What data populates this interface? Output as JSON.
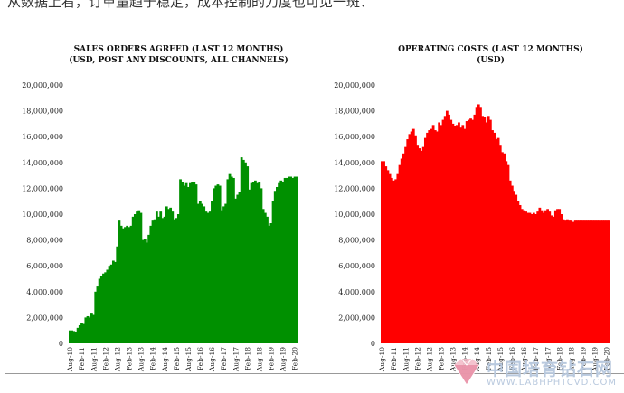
{
  "caption": "从数据上看，订单量趋于稳定，成本控制的力度也可见一斑：",
  "watermark": {
    "text": "中国培育钻石网",
    "url": "WWW.LABHPHTCVD.COM",
    "logo_icon": "diamond-logo-icon"
  },
  "chart_data": [
    {
      "type": "area",
      "title": "SALES ORDERS AGREED (LAST 12 MONTHS)",
      "subtitle": "(USD, POST ANY DISCOUNTS, ALL CHANNELS)",
      "color": "#009000",
      "ylim": [
        0,
        20000000
      ],
      "y_ticks": [
        "0",
        "2,000,000",
        "4,000,000",
        "6,000,000",
        "8,000,000",
        "10,000,000",
        "12,000,000",
        "14,000,000",
        "16,000,000",
        "18,000,000",
        "20,000,000"
      ],
      "x_ticks": [
        "Aug-10",
        "Feb-11",
        "Aug-11",
        "Feb-12",
        "Aug-12",
        "Feb-13",
        "Aug-13",
        "Feb-14",
        "Aug-14",
        "Feb-15",
        "Aug-15",
        "Feb-16",
        "Aug-16",
        "Feb-17",
        "Aug-17",
        "Feb-18",
        "Aug-18",
        "Feb-19",
        "Aug-19",
        "Feb-20"
      ],
      "grid": false,
      "legend": false,
      "x": [
        "2010-08",
        "2010-09",
        "2010-10",
        "2010-11",
        "2010-12",
        "2011-01",
        "2011-02",
        "2011-03",
        "2011-04",
        "2011-05",
        "2011-06",
        "2011-07",
        "2011-08",
        "2011-09",
        "2011-10",
        "2011-11",
        "2011-12",
        "2012-01",
        "2012-02",
        "2012-03",
        "2012-04",
        "2012-05",
        "2012-06",
        "2012-07",
        "2012-08",
        "2012-09",
        "2012-10",
        "2012-11",
        "2012-12",
        "2013-01",
        "2013-02",
        "2013-03",
        "2013-04",
        "2013-05",
        "2013-06",
        "2013-07",
        "2013-08",
        "2013-09",
        "2013-10",
        "2013-11",
        "2013-12",
        "2014-01",
        "2014-02",
        "2014-03",
        "2014-04",
        "2014-05",
        "2014-06",
        "2014-07",
        "2014-08",
        "2014-09",
        "2014-10",
        "2014-11",
        "2014-12",
        "2015-01",
        "2015-02",
        "2015-03",
        "2015-04",
        "2015-05",
        "2015-06",
        "2015-07",
        "2015-08",
        "2015-09",
        "2015-10",
        "2015-11",
        "2015-12",
        "2016-01",
        "2016-02",
        "2016-03",
        "2016-04",
        "2016-05",
        "2016-06",
        "2016-07",
        "2016-08",
        "2016-09",
        "2016-10",
        "2016-11",
        "2016-12",
        "2017-01",
        "2017-02",
        "2017-03",
        "2017-04",
        "2017-05",
        "2017-06",
        "2017-07",
        "2017-08",
        "2017-09",
        "2017-10",
        "2017-11",
        "2017-12",
        "2018-01",
        "2018-02",
        "2018-03",
        "2018-04",
        "2018-05",
        "2018-06",
        "2018-07",
        "2018-08",
        "2018-09",
        "2018-10",
        "2018-11",
        "2018-12",
        "2019-01",
        "2019-02",
        "2019-03",
        "2019-04",
        "2019-05",
        "2019-06",
        "2019-07",
        "2019-08",
        "2019-09",
        "2019-10",
        "2019-11",
        "2019-12",
        "2020-01",
        "2020-02",
        "2020-03"
      ],
      "values": [
        1000000,
        1000000,
        950000,
        900000,
        1200000,
        1400000,
        1600000,
        1500000,
        2000000,
        2100000,
        2000000,
        2300000,
        2200000,
        4000000,
        4400000,
        5000000,
        5200000,
        5400000,
        5500000,
        5700000,
        6000000,
        6100000,
        6400000,
        6300000,
        7500000,
        9500000,
        9100000,
        8900000,
        9000000,
        9100000,
        9000000,
        9100000,
        9800000,
        10000000,
        10200000,
        10300000,
        10100000,
        8000000,
        8100000,
        7800000,
        8400000,
        9100000,
        9500000,
        9600000,
        10200000,
        9800000,
        10200000,
        9700000,
        9800000,
        10600000,
        10400000,
        10500000,
        10200000,
        9600000,
        9700000,
        10000000,
        12700000,
        12500000,
        12200000,
        12400000,
        12100000,
        12400000,
        12500000,
        12500000,
        12300000,
        10800000,
        11000000,
        10800000,
        10600000,
        10200000,
        10100000,
        10200000,
        11000000,
        12000000,
        12200000,
        12300000,
        12200000,
        10300000,
        10600000,
        10800000,
        12700000,
        13100000,
        12900000,
        12800000,
        11200000,
        11500000,
        11700000,
        14400000,
        14200000,
        14000000,
        13700000,
        11900000,
        12400000,
        12500000,
        12600000,
        12400000,
        12500000,
        12000000,
        10400000,
        10100000,
        9800000,
        9100000,
        9300000,
        11000000,
        11800000,
        12100000,
        12400000,
        12600000,
        12500000,
        12800000,
        12800000,
        12900000,
        12900000,
        12800000,
        12900000,
        12900000
      ]
    },
    {
      "type": "area",
      "title": "OPERATING COSTS (LAST 12 MONTHS)",
      "subtitle": "(USD)",
      "color": "#ff0000",
      "ylim": [
        0,
        20000000
      ],
      "y_ticks": [
        "0",
        "2,000,000",
        "4,000,000",
        "6,000,000",
        "8,000,000",
        "10,000,000",
        "12,000,000",
        "14,000,000",
        "16,000,000",
        "18,000,000",
        "20,000,000"
      ],
      "x_ticks": [
        "Aug-10",
        "Feb-11",
        "Aug-11",
        "Feb-12",
        "Aug-12",
        "Feb-13",
        "Aug-13",
        "Feb-14",
        "Aug-14",
        "Feb-15",
        "Aug-15",
        "Feb-16",
        "Aug-16",
        "Feb-17",
        "Aug-17",
        "Feb-18",
        "Aug-18",
        "Feb-19",
        "Aug-19",
        "Feb-20"
      ],
      "grid": false,
      "legend": false,
      "x": [
        "2010-08",
        "2010-09",
        "2010-10",
        "2010-11",
        "2010-12",
        "2011-01",
        "2011-02",
        "2011-03",
        "2011-04",
        "2011-05",
        "2011-06",
        "2011-07",
        "2011-08",
        "2011-09",
        "2011-10",
        "2011-11",
        "2011-12",
        "2012-01",
        "2012-02",
        "2012-03",
        "2012-04",
        "2012-05",
        "2012-06",
        "2012-07",
        "2012-08",
        "2012-09",
        "2012-10",
        "2012-11",
        "2012-12",
        "2013-01",
        "2013-02",
        "2013-03",
        "2013-04",
        "2013-05",
        "2013-06",
        "2013-07",
        "2013-08",
        "2013-09",
        "2013-10",
        "2013-11",
        "2013-12",
        "2014-01",
        "2014-02",
        "2014-03",
        "2014-04",
        "2014-05",
        "2014-06",
        "2014-07",
        "2014-08",
        "2014-09",
        "2014-10",
        "2014-11",
        "2014-12",
        "2015-01",
        "2015-02",
        "2015-03",
        "2015-04",
        "2015-05",
        "2015-06",
        "2015-07",
        "2015-08",
        "2015-09",
        "2015-10",
        "2015-11",
        "2015-12",
        "2016-01",
        "2016-02",
        "2016-03",
        "2016-04",
        "2016-05",
        "2016-06",
        "2016-07",
        "2016-08",
        "2016-09",
        "2016-10",
        "2016-11",
        "2016-12",
        "2017-01",
        "2017-02",
        "2017-03",
        "2017-04",
        "2017-05",
        "2017-06",
        "2017-07",
        "2017-08",
        "2017-09",
        "2017-10",
        "2017-11",
        "2017-12",
        "2018-01",
        "2018-02",
        "2018-03",
        "2018-04",
        "2018-05",
        "2018-06",
        "2018-07",
        "2018-08",
        "2018-09",
        "2018-10",
        "2018-11",
        "2018-12",
        "2019-01",
        "2019-02",
        "2019-03",
        "2019-04",
        "2019-05",
        "2019-06",
        "2019-07",
        "2019-08",
        "2019-09",
        "2019-10",
        "2019-11",
        "2019-12",
        "2020-01",
        "2020-02",
        "2020-03"
      ],
      "values": [
        14100000,
        14100000,
        13700000,
        13400000,
        13100000,
        12800000,
        12600000,
        12700000,
        13100000,
        13800000,
        14300000,
        14700000,
        15200000,
        15800000,
        16200000,
        16400000,
        16600000,
        16100000,
        15300000,
        15100000,
        14900000,
        15200000,
        15900000,
        16300000,
        16500000,
        16600000,
        16900000,
        16500000,
        16400000,
        17100000,
        16900000,
        17300000,
        17600000,
        18000000,
        17700000,
        17300000,
        17000000,
        16800000,
        16900000,
        17100000,
        16700000,
        16900000,
        16600000,
        17200000,
        17300000,
        17400000,
        17300000,
        17700000,
        18300000,
        18500000,
        18300000,
        17600000,
        17500000,
        17100000,
        17600000,
        17300000,
        16500000,
        16300000,
        15800000,
        15900000,
        15300000,
        14800000,
        14700000,
        14100000,
        13800000,
        12600000,
        12200000,
        11800000,
        11500000,
        11000000,
        10700000,
        10400000,
        10300000,
        10200000,
        10100000,
        10100000,
        10000000,
        10100000,
        10000000,
        10200000,
        10500000,
        10300000,
        10100000,
        10300000,
        10400000,
        10200000,
        9900000,
        9800000,
        10300000,
        10400000,
        10400000,
        10000000,
        9600000,
        9500000,
        9600000,
        9500000,
        9500000,
        9400000,
        9500000,
        9500000,
        9500000,
        9500000,
        9500000,
        9500000,
        9500000,
        9500000,
        9500000,
        9500000,
        9500000,
        9500000,
        9500000,
        9500000,
        9500000,
        9500000,
        9500000,
        9500000
      ]
    }
  ]
}
